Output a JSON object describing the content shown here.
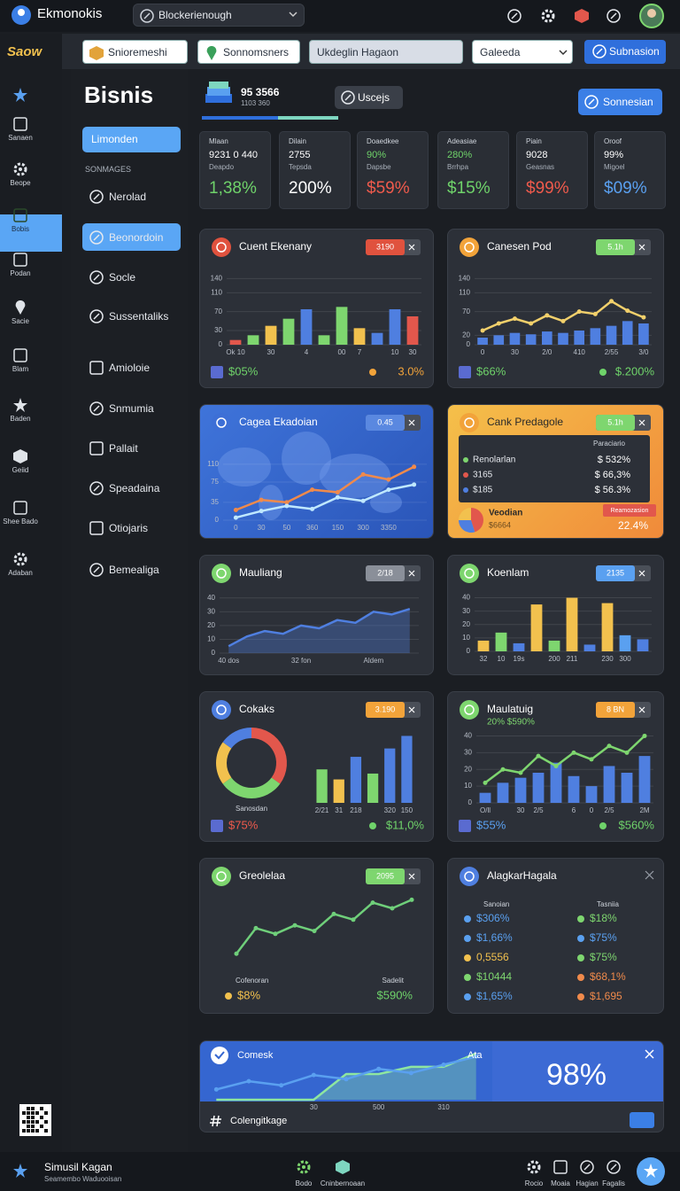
{
  "topbar": {
    "brand": "Ekmonokis",
    "search": "Blockerienough"
  },
  "sidebar": {
    "logo": "Saow",
    "items": [
      "Sanaen",
      "Beope",
      "Bobis",
      "Podan",
      "Sacie",
      "Blam",
      "Baden",
      "Geiid",
      "Shee Bado",
      "Adaban"
    ]
  },
  "toolbar": {
    "fields": [
      "Snioremeshi",
      "Sonnomsners",
      "Ukdeglin Hagaon",
      "Galeeda"
    ],
    "button": "Subnasion"
  },
  "nav": {
    "title": "Bisnis",
    "button": "Limonden",
    "section": "SONMAGES",
    "items": [
      "Nerolad",
      "Beonordoin",
      "Socle",
      "Sussentaliks",
      "Amioloie",
      "Snmumia",
      "Pallait",
      "Speadaina",
      "Otiojaris",
      "Bemealiga"
    ]
  },
  "header": {
    "value": "95 3566",
    "subtitle": "1103 360",
    "search": "Uscejs",
    "button": "Sonnesian"
  },
  "kpis": [
    {
      "label": "Mlaan",
      "line1": "9231 0 440",
      "line2": "Deapdo",
      "value": "1,38%",
      "color": "#6fd36a"
    },
    {
      "label": "Dilain",
      "line1": "2755",
      "line2": "Tepsda",
      "value": "200%",
      "color": "#ffffff"
    },
    {
      "label": "Doaedkee",
      "line1": "90%",
      "line2": "Dapsbe",
      "value": "$59%",
      "color": "#ef5a4c"
    },
    {
      "label": "Adeasiae",
      "line1": "280%",
      "line2": "Brrhpa",
      "value": "$15%",
      "color": "#6fd36a"
    },
    {
      "label": "Piain",
      "line1": "9028",
      "line2": "Geasnas",
      "value": "$99%",
      "color": "#ef5a4c"
    },
    {
      "label": "Oroof",
      "line1": "99%",
      "line2": "Migoel",
      "value": "$09%",
      "color": "#5aa0f0"
    }
  ],
  "widgets": [
    {
      "type": "bar",
      "title": "Cuent Ekenany",
      "badge": "3190",
      "accent": "#e0523e",
      "badge_color": "#e0523e",
      "ylim": [
        0,
        150
      ],
      "yticks": [
        0,
        30,
        70,
        110,
        140
      ],
      "categories": [
        "Ok 10",
        null,
        "30",
        null,
        "4",
        null,
        "00",
        "7",
        null,
        "10",
        "30"
      ],
      "series": [
        {
          "type": "bar",
          "colors": [
            "#e2574c",
            "#7ed66f",
            "#f2c14e",
            "#7ed66f",
            "#4f7fe0",
            "#7ed66f",
            "#7ed66f",
            "#f2c14e",
            "#4f7fe0",
            "#4f7fe0",
            "#e2574c"
          ],
          "values": [
            10,
            20,
            40,
            55,
            75,
            20,
            80,
            35,
            25,
            75,
            60
          ]
        }
      ],
      "footer_left": "$05%",
      "footer_right": "3.0%",
      "footer_colors": [
        "#6fd36a",
        "#f2a33a"
      ]
    },
    {
      "type": "bar",
      "title": "Canesen Pod",
      "badge": "5.1h",
      "accent": "#f2a33a",
      "badge_color": "#7ed66f",
      "ylim": [
        0,
        150
      ],
      "yticks": [
        0,
        20,
        70,
        110,
        140
      ],
      "categories": [
        "0",
        null,
        "30",
        null,
        "2/0",
        null,
        "410",
        null,
        "2/55",
        null,
        "3/0"
      ],
      "series": [
        {
          "type": "bar",
          "color": "#4f7fe0",
          "values": [
            15,
            20,
            25,
            22,
            28,
            25,
            30,
            35,
            40,
            50,
            45
          ]
        },
        {
          "type": "line",
          "color": "#f2d06b",
          "values": [
            30,
            45,
            55,
            45,
            62,
            50,
            70,
            65,
            92,
            72,
            58
          ]
        }
      ],
      "footer_left": "$66%",
      "footer_right": "$.200%",
      "footer_colors": [
        "#6fd36a",
        "#6fd36a"
      ]
    },
    {
      "type": "map",
      "title": "Cagea Ekadoian",
      "badge": "0.45",
      "accent": "#3d6fd6",
      "badge_color": "#5a88e0",
      "ylim": [
        0,
        150
      ],
      "yticks": [
        0,
        35,
        75,
        110
      ],
      "categories": [
        "0",
        "30",
        "50",
        "360",
        "150",
        "300",
        "3350",
        null
      ],
      "series": [
        {
          "type": "line",
          "color": "#f08a4b",
          "values": [
            20,
            40,
            35,
            60,
            55,
            90,
            80,
            105
          ]
        },
        {
          "type": "line",
          "color": "#bfe8ff",
          "values": [
            5,
            18,
            28,
            22,
            45,
            38,
            60,
            70
          ]
        }
      ]
    },
    {
      "type": "summary",
      "title": "Cank Predagole",
      "badge": "5.1h",
      "accent": "#f2a33a",
      "badge_color": "#7ed66f",
      "heading": "Paraciario",
      "rows": [
        [
          "Renolarlan",
          "$ 532%"
        ],
        [
          "3165",
          "$ 66,3%"
        ],
        [
          "$185",
          "$ 56.3%"
        ]
      ],
      "row_colors": [
        "#7ed66f",
        "#e2574c",
        "#4f7fe0"
      ],
      "pie": {
        "values": [
          45,
          30,
          25
        ],
        "colors": [
          "#e2574c",
          "#4f7fe0",
          "#f2c14e"
        ]
      },
      "footer_title": "Veodian",
      "footer_sub": "$6664",
      "tag": "Reamozasion",
      "footer_right": "22.4%"
    },
    {
      "type": "area",
      "title": "Mauliang",
      "badge": "2/18",
      "accent": "#7ed66f",
      "badge_color": "#8a8f99",
      "ylim": [
        0,
        45
      ],
      "yticks": [
        0,
        10,
        20,
        30,
        40
      ],
      "categories": [
        "40 dos",
        null,
        null,
        null,
        "32 fon",
        null,
        null,
        null,
        "Aldem",
        null,
        null
      ],
      "series": [
        {
          "type": "area",
          "color": "#4f7fe0",
          "values": [
            5,
            12,
            16,
            14,
            20,
            18,
            24,
            22,
            30,
            28,
            32
          ]
        }
      ]
    },
    {
      "type": "bar",
      "title": "Koenlam",
      "badge": "2135",
      "accent": "#7ed66f",
      "badge_color": "#5aa0f0",
      "ylim": [
        0,
        45
      ],
      "yticks": [
        0,
        10,
        20,
        30,
        40
      ],
      "categories": [
        "32",
        "10",
        "19s",
        null,
        "200",
        "211",
        null,
        "230",
        "300",
        null
      ],
      "series": [
        {
          "type": "bar",
          "colors": [
            "#f2c14e",
            "#7ed66f",
            "#4f7fe0",
            "#f2c14e",
            "#7ed66f",
            "#f2c14e",
            "#4f7fe0",
            "#f2c14e",
            "#5aa0f0",
            "#4f7fe0"
          ],
          "values": [
            8,
            14,
            6,
            35,
            8,
            40,
            5,
            36,
            12,
            9
          ]
        }
      ]
    },
    {
      "type": "donut-bar",
      "title": "Cokaks",
      "badge": "3.190",
      "accent": "#4f7fe0",
      "badge_color": "#f2a33a",
      "pie": {
        "values": [
          35,
          30,
          20,
          15
        ],
        "colors": [
          "#e2574c",
          "#7ed66f",
          "#f2c14e",
          "#4f7fe0"
        ]
      },
      "pie_label": "Sanosdan",
      "ylim": [
        0,
        90
      ],
      "categories": [
        "2/21",
        "31",
        "218",
        null,
        "320",
        "150"
      ],
      "series": [
        {
          "type": "bar",
          "colors": [
            "#7ed66f",
            "#f2c14e",
            "#4f7fe0",
            "#7ed66f",
            "#4f7fe0",
            "#4f7fe0"
          ],
          "values": [
            40,
            28,
            55,
            35,
            65,
            80
          ]
        }
      ],
      "footer_left": "$75%",
      "footer_right": "$11,0%",
      "footer_colors": [
        "#ef5a4c",
        "#6fd36a"
      ]
    },
    {
      "type": "bar",
      "title": "Maulatuig",
      "subtitle": "20% $590%",
      "badge": "8 BN",
      "accent": "#7ed66f",
      "badge_color": "#f2a33a",
      "ylim": [
        0,
        45
      ],
      "yticks": [
        0,
        10,
        20,
        30,
        40
      ],
      "categories": [
        "O/ll",
        null,
        "30",
        "2/5",
        null,
        "6",
        "0",
        "2/5",
        null,
        "2M"
      ],
      "series": [
        {
          "type": "bar",
          "color": "#4f7fe0",
          "values": [
            6,
            12,
            15,
            18,
            24,
            16,
            10,
            22,
            18,
            28
          ]
        },
        {
          "type": "line",
          "color": "#7ed66f",
          "values": [
            12,
            20,
            18,
            28,
            22,
            30,
            26,
            34,
            30,
            40
          ]
        }
      ],
      "footer_left": "$55%",
      "footer_right": "$560%",
      "footer_colors": [
        "#5aa0f0",
        "#6fd36a"
      ]
    },
    {
      "type": "line",
      "title": "Greolelaa",
      "badge": "2095",
      "accent": "#7ed66f",
      "badge_color": "#7ed66f",
      "ylim": [
        0,
        50
      ],
      "series": [
        {
          "type": "line",
          "color": "#6fcf7a",
          "values": [
            8,
            26,
            22,
            28,
            24,
            36,
            32,
            44,
            40,
            46
          ]
        }
      ],
      "left_label": "Cofenoran",
      "left_value": "$8%",
      "right_label": "Sadelit",
      "right_value": "$590%"
    },
    {
      "type": "legend",
      "title": "AlagkarHagala",
      "accent": "#4f7fe0",
      "columns": [
        {
          "heading": "Sanoian",
          "items": [
            "$306%",
            "$1,66%",
            "0,5556",
            "$10444",
            "$1,65%"
          ],
          "colors": [
            "#5aa0f0",
            "#5aa0f0",
            "#f2c14e",
            "#7ed66f",
            "#5aa0f0"
          ]
        },
        {
          "heading": "Tasniia",
          "items": [
            "$18%",
            "$75%",
            "$75%",
            "$68,1%",
            "$1,695"
          ],
          "colors": [
            "#7ed66f",
            "#5aa0f0",
            "#7ed66f",
            "#f08a4b",
            "#f08a4b"
          ]
        }
      ]
    },
    {
      "type": "wide",
      "title": "Comesk",
      "label": "Ata",
      "big_value": "98%",
      "footer": "Colengitkage",
      "ylim": [
        0,
        50
      ],
      "categories": [
        null,
        null,
        null,
        "30",
        null,
        "500",
        null,
        "310",
        null
      ],
      "series": [
        {
          "type": "area",
          "color": "#8ee6a0",
          "values": [
            0,
            0,
            0,
            0,
            25,
            25,
            32,
            32,
            45
          ]
        },
        {
          "type": "line",
          "color": "#5aa0f0",
          "values": [
            10,
            18,
            14,
            24,
            20,
            30,
            26,
            34,
            42
          ]
        }
      ]
    }
  ],
  "bottombar": {
    "title": "Simusil Kagan",
    "subtitle": "Seamembo Waduooisan",
    "center": [
      "Bodo",
      "Cninbernoaan"
    ],
    "right": [
      "Rocio",
      "Moaia",
      "Hagian",
      "Fagalis"
    ]
  }
}
